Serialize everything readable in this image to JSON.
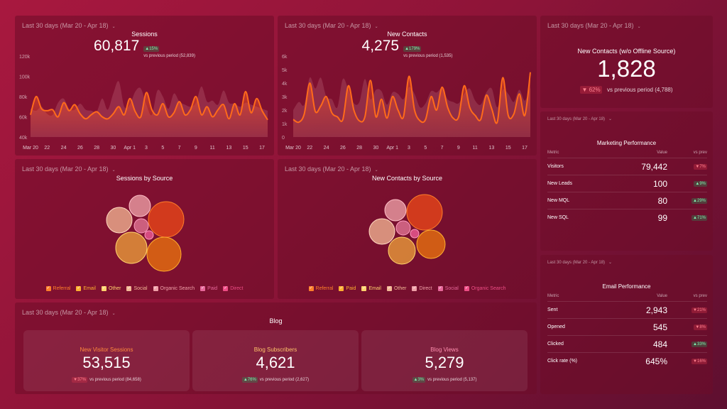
{
  "period_label": "Last 30 days (Mar 20 - Apr 18)",
  "sessions": {
    "title": "Sessions",
    "value": "60,817",
    "change": "▲15%",
    "vs": "vs previous period (52,839)",
    "chart_data": {
      "type": "area",
      "y_ticks": [
        "120k",
        "100k",
        "80k",
        "60k",
        "40k"
      ],
      "ylim": [
        40000,
        120000
      ],
      "x_ticks": [
        "Mar 20",
        "22",
        "24",
        "26",
        "28",
        "30",
        "Apr 1",
        "3",
        "5",
        "7",
        "9",
        "11",
        "13",
        "15",
        "17"
      ],
      "series": [
        {
          "values": [
            62000,
            80000,
            68000,
            66000,
            67000,
            60000,
            74000,
            66000,
            72000,
            63000,
            58000,
            62000,
            65000,
            60000,
            58000,
            63000,
            70000,
            62000,
            78000,
            65000,
            60000,
            84000,
            67000,
            62000,
            73000,
            60000,
            64000,
            75000,
            62000,
            67000,
            80000,
            62000,
            70000,
            60000,
            67000,
            72000,
            58000,
            73000,
            62000,
            85000,
            64000,
            78000,
            66000,
            57000
          ]
        },
        {
          "values": [
            68000,
            66000,
            70000,
            63000,
            62000,
            74000,
            78000,
            68000,
            67000,
            73000,
            67000,
            66000,
            65000,
            78000,
            67000,
            83000,
            95000,
            70000,
            72000,
            85000,
            88000,
            72000,
            62000,
            86000,
            80000,
            68000,
            83000,
            75000,
            72000,
            70000,
            74000,
            90000,
            75000,
            76000,
            72000,
            86000,
            74000,
            73000,
            70000,
            74000,
            72000,
            70000,
            68000,
            66000
          ]
        }
      ]
    }
  },
  "new_contacts": {
    "title": "New Contacts",
    "value": "4,275",
    "change": "▲179%",
    "vs": "vs previous period (1,535)",
    "chart_data": {
      "type": "area",
      "y_ticks": [
        "6k",
        "5k",
        "4k",
        "3k",
        "2k",
        "1k",
        "0"
      ],
      "ylim": [
        0,
        6000
      ],
      "x_ticks": [
        "Mar 20",
        "22",
        "24",
        "26",
        "28",
        "30",
        "Apr 1",
        "3",
        "5",
        "7",
        "9",
        "11",
        "13",
        "15",
        "17"
      ],
      "series": [
        {
          "values": [
            1300,
            1100,
            1700,
            4000,
            1900,
            2300,
            3000,
            1800,
            1500,
            1300,
            3800,
            2000,
            1200,
            1500,
            4200,
            1500,
            2800,
            1400,
            3000,
            2000,
            1500,
            4500,
            2000,
            1200,
            1300,
            3000,
            2000,
            3700,
            2200,
            1400,
            1500,
            3800,
            2200,
            1600,
            1300,
            3100,
            2100,
            1100,
            4400,
            1600,
            1700,
            3200,
            1600,
            4800
          ]
        },
        {
          "values": [
            2000,
            2600,
            2400,
            4400,
            3600,
            4400,
            3000,
            2800,
            2200,
            4300,
            3500,
            2500,
            2600,
            4300,
            2800,
            3500,
            3400,
            2400,
            3300,
            3200,
            2800,
            3700,
            3200,
            2200,
            2500,
            3400,
            3300,
            3600,
            2800,
            2600,
            2500,
            3200,
            3600,
            2700,
            2400,
            3300,
            3600,
            2200,
            3500,
            3200,
            2600,
            3500,
            2700,
            3700
          ]
        }
      ]
    }
  },
  "offline": {
    "title": "New Contacts (w/o Offline Source)",
    "value": "1,828",
    "change": "▼ 62%",
    "vs": "vs previous period (4,788)"
  },
  "sessions_by_source": {
    "title": "Sessions by Source",
    "legend": [
      {
        "name": "Referral",
        "color": "#ff7f2a"
      },
      {
        "name": "Email",
        "color": "#ffb030"
      },
      {
        "name": "Other",
        "color": "#ffd36e"
      },
      {
        "name": "Social",
        "color": "#f3b895"
      },
      {
        "name": "Organic Search",
        "color": "#f0a0a8"
      },
      {
        "name": "Paid",
        "color": "#e7679a"
      },
      {
        "name": "Direct",
        "color": "#ee4d86"
      }
    ]
  },
  "contacts_by_source": {
    "title": "New Contacts by Source",
    "legend": [
      {
        "name": "Referral",
        "color": "#ff7f2a"
      },
      {
        "name": "Paid",
        "color": "#ffb030"
      },
      {
        "name": "Email",
        "color": "#ffd36e"
      },
      {
        "name": "Other",
        "color": "#f3b895"
      },
      {
        "name": "Direct",
        "color": "#f0a0a8"
      },
      {
        "name": "Social",
        "color": "#e7679a"
      },
      {
        "name": "Organic Search",
        "color": "#ee4d86"
      }
    ]
  },
  "marketing": {
    "title": "Marketing Performance",
    "headers": [
      "Metric",
      "Value",
      "vs prev"
    ],
    "rows": [
      {
        "metric": "Visitors",
        "value": "79,442",
        "change": "▼7%",
        "dir": "down"
      },
      {
        "metric": "New Leads",
        "value": "100",
        "change": "▲9%",
        "dir": "up"
      },
      {
        "metric": "New MQL",
        "value": "80",
        "change": "▲29%",
        "dir": "up"
      },
      {
        "metric": "New SQL",
        "value": "99",
        "change": "▲71%",
        "dir": "up"
      }
    ]
  },
  "email": {
    "title": "Email Performance",
    "headers": [
      "Metric",
      "Value",
      "vs prev"
    ],
    "rows": [
      {
        "metric": "Sent",
        "value": "2,943",
        "change": "▼21%",
        "dir": "down"
      },
      {
        "metric": "Opened",
        "value": "545",
        "change": "▼8%",
        "dir": "down"
      },
      {
        "metric": "Clicked",
        "value": "484",
        "change": "▲33%",
        "dir": "up"
      },
      {
        "metric": "Click rate (%)",
        "value": "645%",
        "change": "▼16%",
        "dir": "down"
      }
    ]
  },
  "blog": {
    "title": "Blog",
    "cards": [
      {
        "label": "New Visitor Sessions",
        "value": "53,515",
        "change": "▼37%",
        "dir": "down",
        "vs": "vs previous period (84,658)",
        "color": "#ff8a3d"
      },
      {
        "label": "Blog Subscribers",
        "value": "4,621",
        "change": "▲76%",
        "dir": "up",
        "vs": "vs previous period (2,627)",
        "color": "#ffc46a"
      },
      {
        "label": "Blog Views",
        "value": "5,279",
        "change": "▲3%",
        "dir": "up",
        "vs": "vs previous period (5,137)",
        "color": "#ff8fb0"
      }
    ]
  }
}
